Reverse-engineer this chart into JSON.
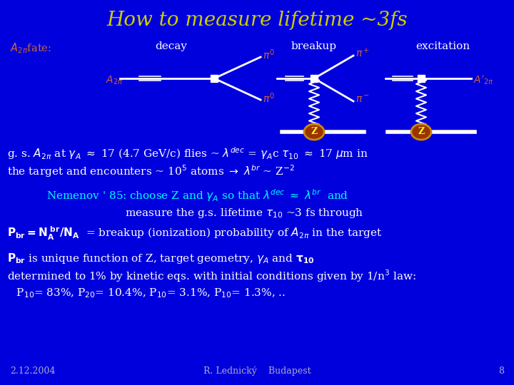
{
  "bg_color": "#0000dd",
  "title": "How to measure lifetime ~3fs",
  "title_color": "#cccc00",
  "title_fontsize": 20,
  "white_color": "#ffffff",
  "cyan_color": "#00ffff",
  "yellow_color": "#ffff00",
  "orange_color": "#cc6633",
  "footer_color": "#aaaacc",
  "footer_texts": [
    "2.12.2004",
    "R. Lednický    Budapest",
    "8"
  ]
}
